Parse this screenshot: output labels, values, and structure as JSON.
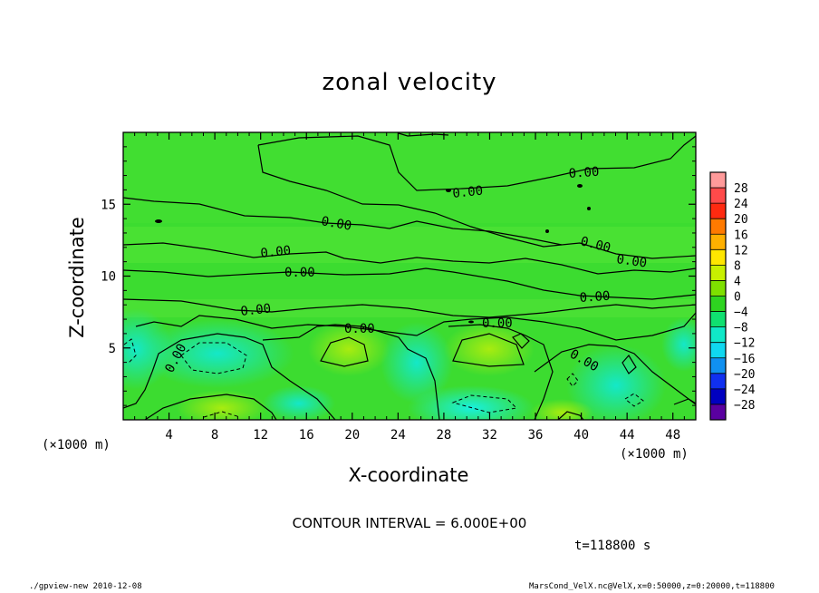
{
  "chart_data": {
    "type": "heatmap",
    "title": "zonal velocity",
    "xlabel": "X-coordinate",
    "ylabel": "Z-coordinate",
    "x_unit_label": "(×1000 m)",
    "xlim": [
      0,
      50
    ],
    "ylim": [
      0,
      20
    ],
    "x_ticks": [
      4,
      8,
      12,
      16,
      20,
      24,
      28,
      32,
      36,
      40,
      44,
      48
    ],
    "y_ticks": [
      5,
      10,
      15
    ],
    "colorbar": {
      "levels": [
        -28,
        -24,
        -20,
        -16,
        -12,
        -8,
        -4,
        0,
        4,
        8,
        12,
        16,
        20,
        24,
        28
      ],
      "labels": [
        "28",
        "24",
        "20",
        "16",
        "12",
        "8",
        "4",
        "0",
        "−4",
        "−8",
        "−12",
        "−16",
        "−20",
        "−24",
        "−28"
      ],
      "colors": [
        "#ff9a9a",
        "#ff4a4a",
        "#ff2a10",
        "#ff7a00",
        "#ffb000",
        "#ffe600",
        "#c8f000",
        "#7ee000",
        "#2ed420",
        "#10e070",
        "#10e8c8",
        "#10d8f0",
        "#1090f0",
        "#1030f0",
        "#0000c0",
        "#5a00a0"
      ]
    },
    "contour_interval": "CONTOUR INTERVAL = 6.000E+00",
    "contour_label": "0.00",
    "contour_label_count": 13,
    "time": "t=118800 s",
    "annotation_left": "./gpview-new  2010-12-08",
    "annotation_right": "MarsCond_VelX.nc@VelX,x=0:50000,z=0:20000,t=118800"
  }
}
